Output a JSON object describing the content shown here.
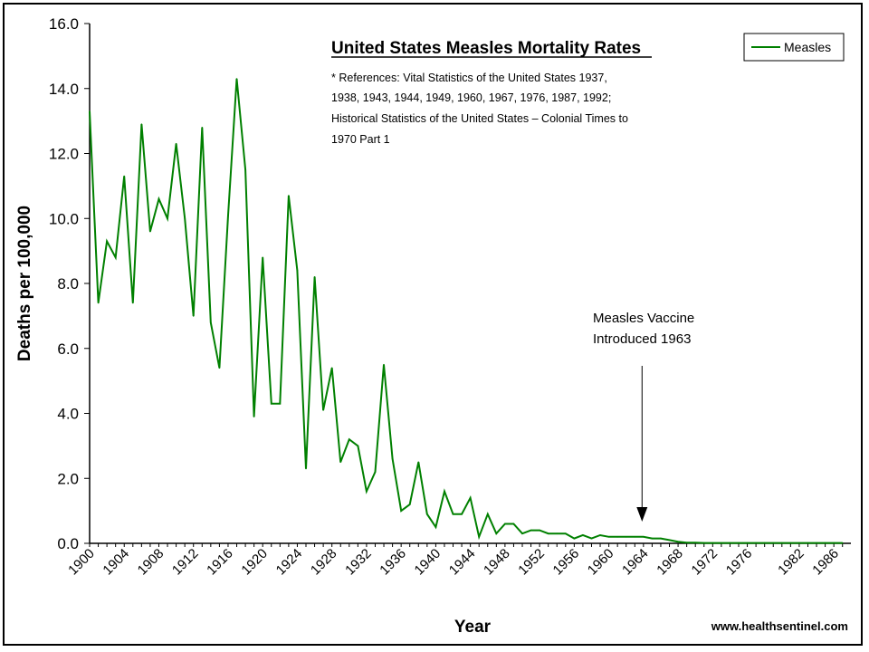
{
  "chart_data": {
    "type": "line",
    "title": "United States Measles Mortality Rates",
    "references": [
      "* References: Vital Statistics of the United States 1937,",
      "1938, 1943, 1944, 1949, 1960, 1967, 1976, 1987, 1992;",
      "Historical Statistics of the United States – Colonial Times to",
      "1970 Part 1"
    ],
    "xlabel": "Year",
    "ylabel": "Deaths per 100,000",
    "ylim": [
      0,
      16
    ],
    "xlim": [
      1900,
      1987
    ],
    "y_ticks": [
      "0.0",
      "2.0",
      "4.0",
      "6.0",
      "8.0",
      "10.0",
      "12.0",
      "14.0",
      "16.0"
    ],
    "x_ticks": [
      "1900",
      "1904",
      "1908",
      "1912",
      "1916",
      "1920",
      "1924",
      "1928",
      "1932",
      "1936",
      "1940",
      "1944",
      "1948",
      "1952",
      "1956",
      "1960",
      "1964",
      "1968",
      "1972",
      "1976",
      "1982",
      "1986"
    ],
    "grid": false,
    "legend_position": "top-right",
    "series": [
      {
        "name": "Measles",
        "color": "#008000",
        "x": [
          1900,
          1901,
          1902,
          1903,
          1904,
          1905,
          1906,
          1907,
          1908,
          1909,
          1910,
          1911,
          1912,
          1913,
          1914,
          1915,
          1916,
          1917,
          1918,
          1919,
          1920,
          1921,
          1922,
          1923,
          1924,
          1925,
          1926,
          1927,
          1928,
          1929,
          1930,
          1931,
          1932,
          1933,
          1934,
          1935,
          1936,
          1937,
          1938,
          1939,
          1940,
          1941,
          1942,
          1943,
          1944,
          1945,
          1946,
          1947,
          1948,
          1949,
          1950,
          1951,
          1952,
          1953,
          1954,
          1955,
          1956,
          1957,
          1958,
          1959,
          1960,
          1961,
          1962,
          1963,
          1964,
          1965,
          1966,
          1967,
          1968,
          1969,
          1970,
          1971,
          1972,
          1973,
          1974,
          1975,
          1976,
          1977,
          1978,
          1979,
          1980,
          1981,
          1982,
          1983,
          1984,
          1985,
          1986,
          1987
        ],
        "y": [
          13.3,
          7.4,
          9.3,
          8.8,
          11.3,
          7.4,
          12.9,
          9.6,
          10.6,
          10.0,
          12.3,
          10.0,
          7.0,
          12.8,
          6.8,
          5.4,
          10.1,
          14.3,
          11.5,
          3.9,
          8.8,
          4.3,
          4.3,
          10.7,
          8.4,
          2.3,
          8.2,
          4.1,
          5.4,
          2.5,
          3.2,
          3.0,
          1.6,
          2.2,
          5.5,
          2.6,
          1.0,
          1.2,
          2.5,
          0.9,
          0.5,
          1.6,
          0.9,
          0.9,
          1.4,
          0.2,
          0.9,
          0.3,
          0.6,
          0.6,
          0.3,
          0.4,
          0.4,
          0.3,
          0.3,
          0.3,
          0.15,
          0.25,
          0.15,
          0.25,
          0.2,
          0.2,
          0.2,
          0.2,
          0.2,
          0.15,
          0.15,
          0.1,
          0.05,
          0.02,
          0.02,
          0.01,
          0.01,
          0.01,
          0.01,
          0.01,
          0.01,
          0.01,
          0.01,
          0.01,
          0.01,
          0.01,
          0.01,
          0.01,
          0.01,
          0.01,
          0.01,
          0.01
        ]
      }
    ],
    "annotation": {
      "lines": [
        "Measles Vaccine",
        "Introduced 1963"
      ],
      "x": 1963
    },
    "source": "www.healthsentinel.com"
  }
}
